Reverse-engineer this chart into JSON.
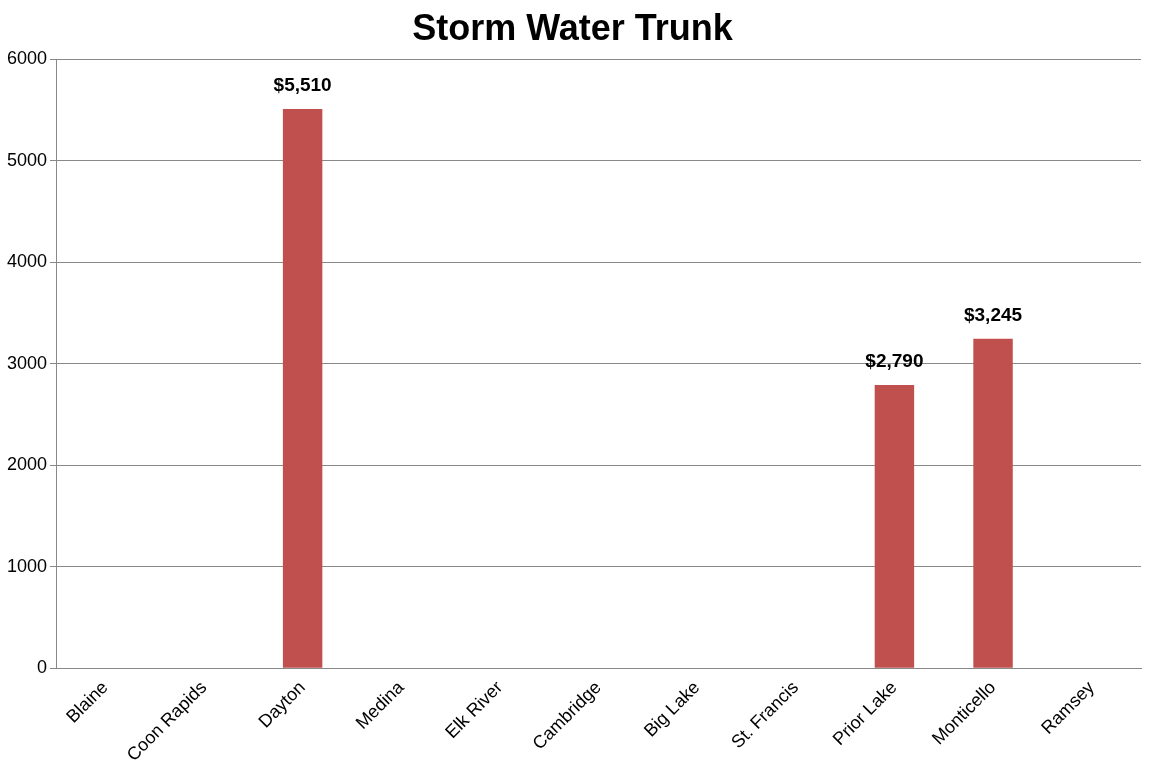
{
  "chart_data": {
    "type": "bar",
    "title": "Storm Water Trunk",
    "categories": [
      "Blaine",
      "Coon Rapids",
      "Dayton",
      "Medina",
      "Elk River",
      "Cambridge",
      "Big Lake",
      "St. Francis",
      "Prior Lake",
      "Monticello",
      "Ramsey"
    ],
    "values": [
      null,
      null,
      5510,
      null,
      null,
      null,
      null,
      null,
      2790,
      3245,
      null
    ],
    "value_labels": [
      null,
      null,
      "$5,510",
      null,
      null,
      null,
      null,
      null,
      "$2,790",
      "$3,245",
      null
    ],
    "color": "#c0504d",
    "ylim": [
      0,
      6000
    ],
    "yticks": [
      0,
      1000,
      2000,
      3000,
      4000,
      5000,
      6000
    ],
    "grid": "y",
    "legend": false
  }
}
